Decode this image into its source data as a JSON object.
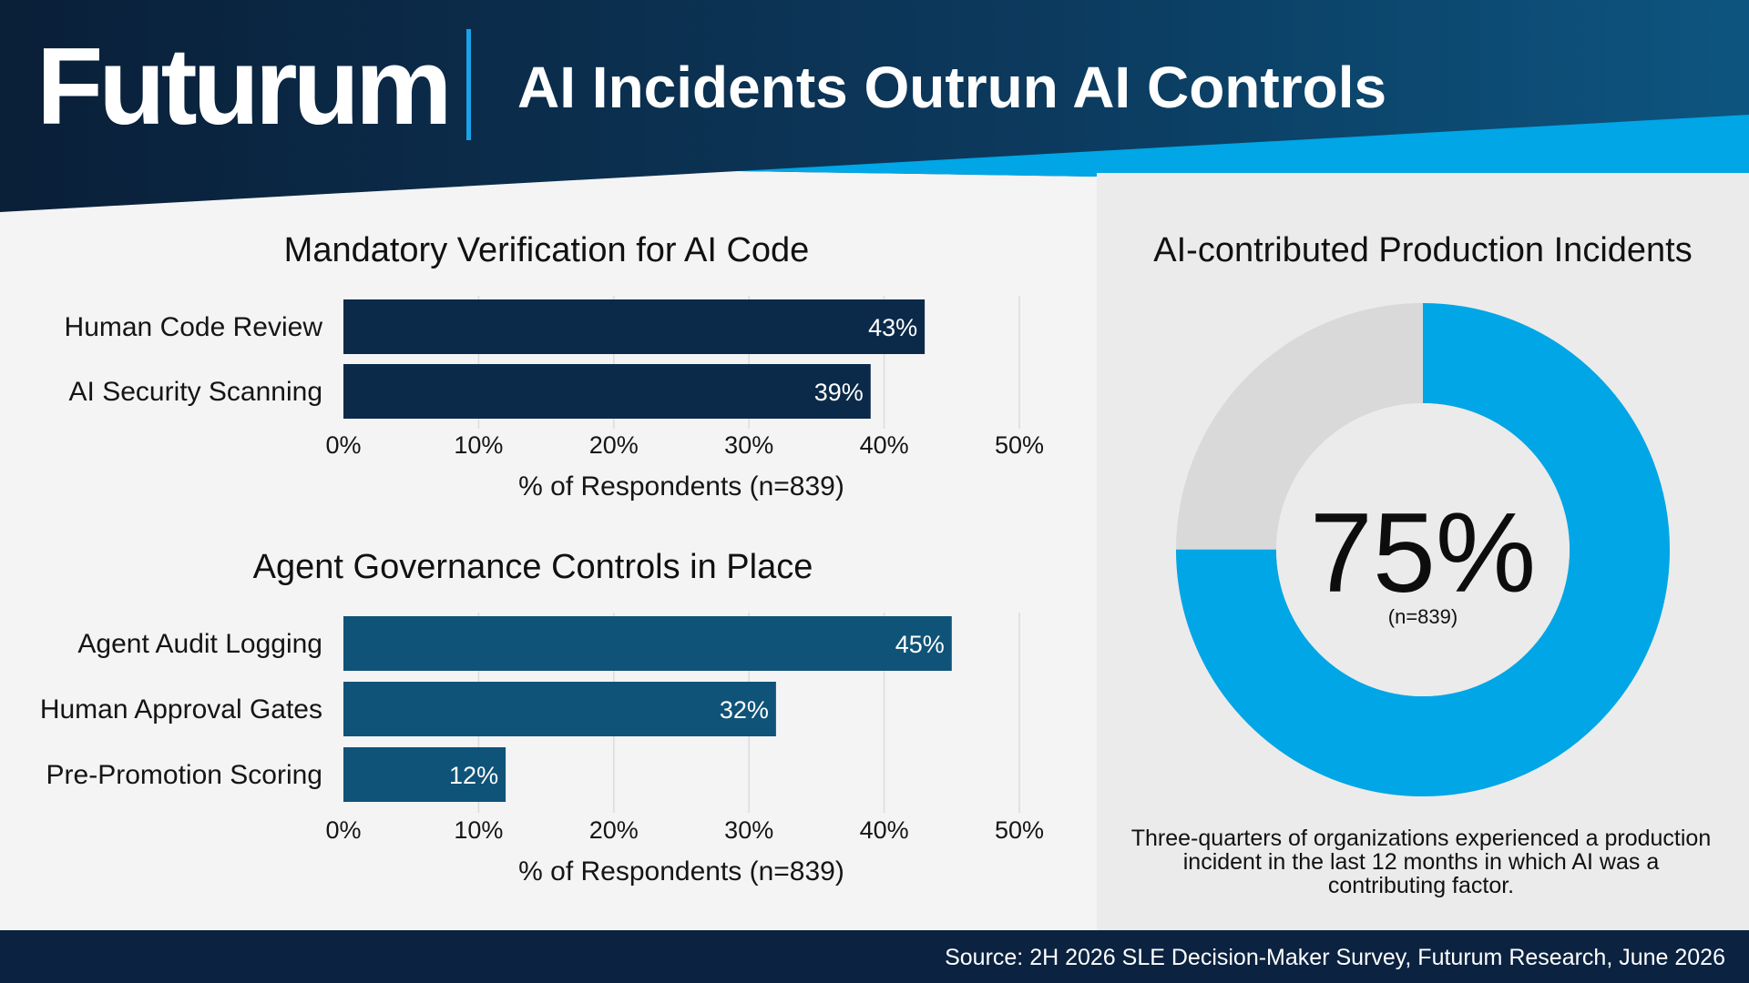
{
  "header": {
    "brand": "Futurum",
    "title": "AI Incidents Outrun AI Controls"
  },
  "colors": {
    "header_dark": "#0b2340",
    "header_mid": "#0d4a70",
    "accent_blue": "#00a6e5",
    "bar_navy": "#0b2a4a",
    "bar_teal": "#0f5378",
    "donut_gray": "#d9d9d9",
    "grid": "#dcdcdc"
  },
  "chart_data": [
    {
      "type": "bar",
      "orientation": "horizontal",
      "title": "Mandatory Verification for AI Code",
      "categories": [
        "Human Code Review",
        "AI Security Scanning"
      ],
      "values": [
        43,
        39
      ],
      "value_labels": [
        "43%",
        "39%"
      ],
      "xlabel": "% of Respondents (n=839)",
      "xlim": [
        0,
        50
      ],
      "xticks": [
        "0%",
        "10%",
        "20%",
        "30%",
        "40%",
        "50%"
      ],
      "grid": true,
      "color": "#0b2a4a"
    },
    {
      "type": "bar",
      "orientation": "horizontal",
      "title": "Agent Governance Controls in Place",
      "categories": [
        "Agent Audit Logging",
        "Human Approval Gates",
        "Pre-Promotion Scoring"
      ],
      "values": [
        45,
        32,
        12
      ],
      "value_labels": [
        "45%",
        "32%",
        "12%"
      ],
      "xlabel": "% of Respondents (n=839)",
      "xlim": [
        0,
        50
      ],
      "xticks": [
        "0%",
        "10%",
        "20%",
        "30%",
        "40%",
        "50%"
      ],
      "grid": true,
      "color": "#0f5378"
    },
    {
      "type": "pie",
      "style": "donut",
      "title": "AI-contributed Production Incidents",
      "value": 75,
      "center_label": "75%",
      "sub_label": "(n=839)",
      "colors": [
        "#00a6e5",
        "#d9d9d9"
      ]
    }
  ],
  "caption": "Three-quarters of organizations experienced a production incident in the last 12 months in which AI was a contributing factor.",
  "footer": {
    "source": "Source: 2H 2026 SLE Decision-Maker Survey, Futurum Research, June 2026"
  }
}
